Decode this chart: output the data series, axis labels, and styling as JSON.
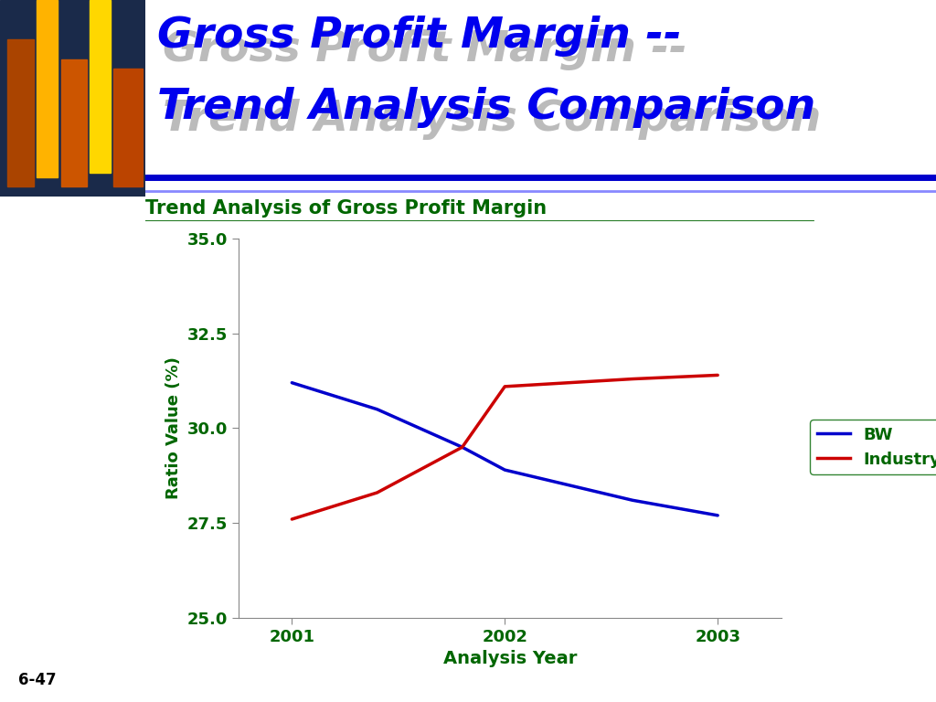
{
  "title_line1": "Gross Profit Margin --",
  "title_line2": "Trend Analysis Comparison",
  "subtitle": "Trend Analysis of Gross Profit Margin",
  "xlabel": "Analysis Year",
  "ylabel": "Ratio Value (%)",
  "bw_years": [
    2001,
    2001.4,
    2001.8,
    2002,
    2002.3,
    2002.6,
    2003
  ],
  "bw_values": [
    31.2,
    30.5,
    29.5,
    28.9,
    28.5,
    28.1,
    27.7
  ],
  "industry_years": [
    2001,
    2001.4,
    2001.8,
    2002,
    2002.3,
    2002.6,
    2003
  ],
  "industry_values": [
    27.6,
    28.3,
    29.5,
    31.1,
    31.2,
    31.3,
    31.4
  ],
  "ylim": [
    25.0,
    35.0
  ],
  "yticks": [
    25.0,
    27.5,
    30.0,
    32.5,
    35.0
  ],
  "xticks": [
    2001,
    2002,
    2003
  ],
  "bw_color": "#0000CC",
  "industry_color": "#CC0000",
  "subtitle_color": "#006600",
  "title_color": "#0000EE",
  "axis_color": "#006600",
  "legend_border_color": "#006600",
  "background_color": "#FFFFFF",
  "footnote": "6-47"
}
